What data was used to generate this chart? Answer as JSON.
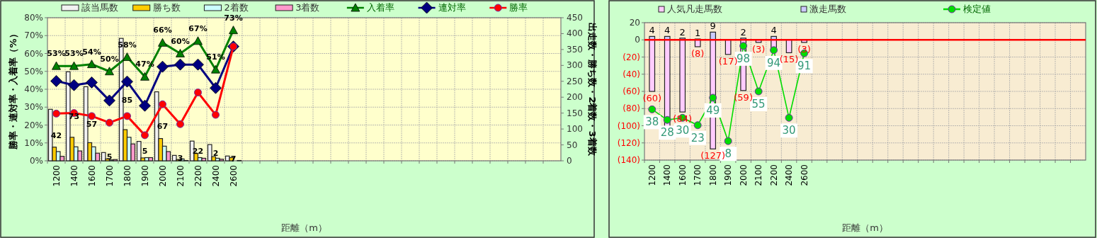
{
  "chart_data": [
    {
      "type": "bar",
      "xlabel": "距離（m）",
      "ylabel": "勝率・連対率・入着率（%）",
      "y2label": "出走数・勝ち数・2着数・3着数",
      "categories": [
        "1200",
        "1400",
        "1600",
        "1700",
        "1800",
        "1900",
        "2000",
        "2100",
        "2200",
        "2400",
        "2600",
        null,
        null,
        null,
        null,
        null,
        null,
        null,
        null,
        null,
        null,
        null,
        null,
        null,
        null,
        null,
        null,
        null,
        null
      ],
      "ylim": [
        0,
        80
      ],
      "yticks": [
        {
          "value": 0,
          "label": "0%"
        },
        {
          "value": 10,
          "label": "10%"
        },
        {
          "value": 20,
          "label": "20%"
        },
        {
          "value": 30,
          "label": "30%"
        },
        {
          "value": 40,
          "label": "40%"
        },
        {
          "value": 50,
          "label": "50%"
        },
        {
          "value": 60,
          "label": "60%"
        },
        {
          "value": 70,
          "label": "70%"
        },
        {
          "value": 80,
          "label": "80%"
        }
      ],
      "y2lim": [
        0,
        450
      ],
      "y2ticks": [
        0,
        50,
        100,
        150,
        200,
        250,
        300,
        350,
        400,
        450
      ],
      "grid": true,
      "legend": "top",
      "series": [
        {
          "name": "該当馬数",
          "axis": "y2",
          "color": "#f2f2f2",
          "values": [
            162,
            280,
            233,
            26,
            385,
            61,
            217,
            17,
            62,
            51,
            15,
            null,
            null,
            null,
            null,
            null,
            null,
            null,
            null,
            null,
            null,
            null,
            null,
            null,
            null,
            null,
            null,
            null,
            null
          ]
        },
        {
          "name": "勝ち数",
          "axis": "y2",
          "color": "#ffcc00",
          "values": [
            43,
            74,
            57,
            6,
            98,
            9,
            70,
            4,
            23,
            13,
            10,
            null,
            null,
            null,
            null,
            null,
            null,
            null,
            null,
            null,
            null,
            null,
            null,
            null,
            null,
            null,
            null,
            null,
            null
          ]
        },
        {
          "name": "2着数",
          "axis": "y2",
          "color": "#ccffff",
          "values": [
            29,
            44,
            44,
            3,
            74,
            10,
            46,
            6,
            10,
            8,
            0,
            null,
            null,
            null,
            null,
            null,
            null,
            null,
            null,
            null,
            null,
            null,
            null,
            null,
            null,
            null,
            null,
            null,
            null
          ]
        },
        {
          "name": "3着数",
          "axis": "y2",
          "color": "#ff99cc",
          "values": [
            14,
            31,
            24,
            4,
            53,
            10,
            29,
            1,
            8,
            5,
            1,
            null,
            null,
            null,
            null,
            null,
            null,
            null,
            null,
            null,
            null,
            null,
            null,
            null,
            null,
            null,
            null,
            null,
            null
          ]
        },
        {
          "name": "入着率",
          "type": "line",
          "marker": "triangle",
          "color": "#008000",
          "values": [
            53,
            53,
            54,
            50,
            58,
            47,
            66,
            60,
            67,
            51,
            73,
            null,
            null,
            null,
            null,
            null,
            null,
            null,
            null,
            null,
            null,
            null,
            null,
            null,
            null,
            null,
            null,
            null,
            null
          ],
          "value_labels": [
            "53%",
            "53%",
            "54%",
            "50%",
            "58%",
            "47%",
            "66%",
            "60%",
            "67%",
            "51%",
            "73%",
            null,
            null,
            null,
            null,
            null,
            null,
            null,
            null,
            null,
            null,
            null,
            null,
            null,
            null,
            null,
            null,
            null,
            null
          ]
        },
        {
          "name": "連対率",
          "type": "line",
          "marker": "diamond",
          "color": "#000080",
          "values": [
            44.6,
            42.3,
            43.8,
            33.7,
            44.3,
            30.8,
            52.6,
            53.8,
            53.8,
            40.7,
            63.9,
            null,
            null,
            null,
            null,
            null,
            null,
            null,
            null,
            null,
            null,
            null,
            null,
            null,
            null,
            null,
            null,
            null,
            null
          ]
        },
        {
          "name": "勝率",
          "type": "line",
          "marker": "circle",
          "color": "#ff0000",
          "values": [
            26.4,
            26.7,
            25.0,
            21.3,
            25.0,
            14.3,
            31.6,
            20.5,
            38.2,
            25.7,
            63.9,
            null,
            null,
            null,
            null,
            null,
            null,
            null,
            null,
            null,
            null,
            null,
            null,
            null,
            null,
            null,
            null,
            null,
            null
          ]
        }
      ],
      "annotations": [
        "42",
        "73",
        "57",
        "5",
        "85",
        "5",
        "67",
        "3",
        "22",
        "2",
        "7"
      ]
    },
    {
      "type": "bar",
      "stacked": true,
      "xlabel": "距離（m）",
      "categories": [
        "1200",
        "1400",
        "1600",
        "1700",
        "1800",
        "1900",
        "2000",
        "2100",
        "2200",
        "2400",
        "2600",
        null,
        null,
        null,
        null,
        null,
        null,
        null,
        null,
        null,
        null,
        null,
        null,
        null,
        null,
        null,
        null,
        null,
        null
      ],
      "ylim": [
        -140,
        20
      ],
      "yticks": [
        {
          "value": -140,
          "label": "(140)"
        },
        {
          "value": -120,
          "label": "(120)"
        },
        {
          "value": -100,
          "label": "(100)"
        },
        {
          "value": -80,
          "label": "(80)"
        },
        {
          "value": -60,
          "label": "(60)"
        },
        {
          "value": -40,
          "label": "(40)"
        },
        {
          "value": -20,
          "label": "(20)"
        },
        0,
        20
      ],
      "y2lim": [
        -10,
        120
      ],
      "grid": true,
      "legend": "top",
      "ref_lines": [
        {
          "axis": "y",
          "value": 0,
          "color": "#ff0000"
        }
      ],
      "series": [
        {
          "name": "人気凡走馬数",
          "color": "#ffccff",
          "values": [
            -60,
            -101,
            -84,
            -8,
            -127,
            -17,
            -59,
            -3,
            -10,
            -15,
            -3,
            null,
            null,
            null,
            null,
            null,
            null,
            null,
            null,
            null,
            null,
            null,
            null,
            null,
            null,
            null,
            null,
            null,
            null
          ],
          "value_labels": [
            "(60)",
            null,
            "(84)",
            "(8)",
            "(127)",
            "(17)",
            "(59)",
            "(3)",
            null,
            "(15)",
            "(3)",
            null,
            null,
            null,
            null,
            null,
            null,
            null,
            null,
            null,
            null,
            null,
            null,
            null,
            null,
            null,
            null,
            null,
            null
          ]
        },
        {
          "name": "激走馬数",
          "color": "#ccccff",
          "values": [
            4,
            4,
            2,
            1,
            9,
            0,
            2,
            0,
            4,
            0,
            0,
            null,
            null,
            null,
            null,
            null,
            null,
            null,
            null,
            null,
            null,
            null,
            null,
            null,
            null,
            null,
            null,
            null,
            null
          ],
          "value_labels": [
            "4",
            "4",
            "2",
            "1",
            "9",
            null,
            "2",
            null,
            "4",
            null,
            null,
            null,
            null,
            null,
            null,
            null,
            null,
            null,
            null,
            null,
            null,
            null,
            null,
            null,
            null,
            null,
            null,
            null,
            null
          ]
        },
        {
          "name": "検定値",
          "type": "line",
          "axis": "y2",
          "marker": "circle",
          "color": "#00dd00",
          "values": [
            38,
            28,
            30,
            23,
            49,
            8,
            98,
            55,
            94,
            30,
            91,
            null,
            null,
            null,
            null,
            null,
            null,
            null,
            null,
            null,
            null,
            null,
            null,
            null,
            null,
            null,
            null,
            null,
            null
          ],
          "value_labels": [
            "38",
            "28",
            "30",
            "23",
            "49",
            "8",
            "98",
            "55",
            "94",
            "30",
            "91",
            null,
            null,
            null,
            null,
            null,
            null,
            null,
            null,
            null,
            null,
            null,
            null,
            null,
            null,
            null,
            null,
            null,
            null
          ]
        }
      ]
    }
  ]
}
